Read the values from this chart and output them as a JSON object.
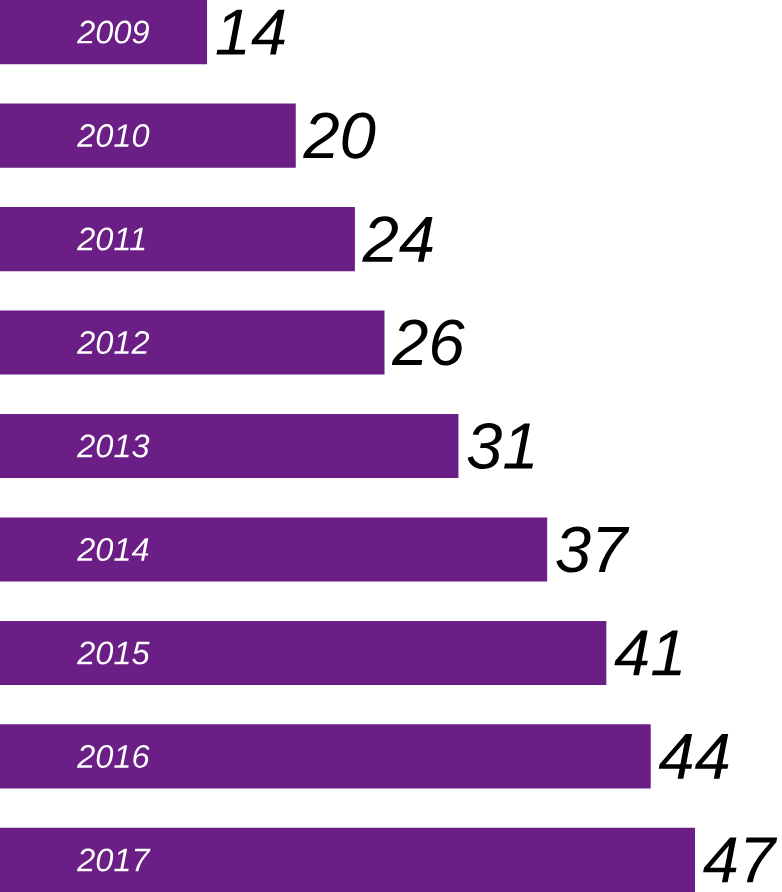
{
  "chart_data": {
    "type": "bar",
    "orientation": "horizontal",
    "categories": [
      "2009",
      "2010",
      "2011",
      "2012",
      "2013",
      "2014",
      "2015",
      "2016",
      "2017"
    ],
    "values": [
      14,
      20,
      24,
      26,
      31,
      37,
      41,
      44,
      47
    ],
    "color": "#6b1f86",
    "data_labels": true
  }
}
